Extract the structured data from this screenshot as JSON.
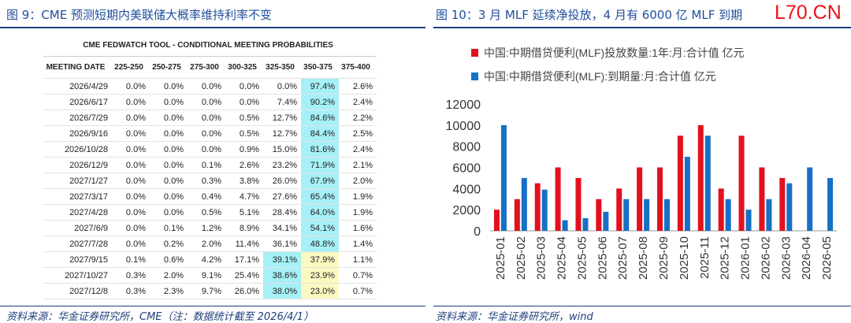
{
  "left": {
    "title": "图 9：CME 预测短期内美联储大概率维持利率不变",
    "source": "资料来源：华金证券研究所，CME（注：数据统计截至 2026/4/1）",
    "table": {
      "header": "CME FEDWATCH TOOL - CONDITIONAL MEETING PROBABILITIES",
      "columns": [
        "MEETING DATE",
        "225-250",
        "250-275",
        "275-300",
        "300-325",
        "325-350",
        "350-375",
        "375-400"
      ],
      "rows": [
        [
          "2026/4/29",
          "0.0%",
          "0.0%",
          "0.0%",
          "0.0%",
          "0.0%",
          "97.4%",
          "2.6%"
        ],
        [
          "2026/6/17",
          "0.0%",
          "0.0%",
          "0.0%",
          "0.0%",
          "7.4%",
          "90.2%",
          "2.4%"
        ],
        [
          "2026/7/29",
          "0.0%",
          "0.0%",
          "0.0%",
          "0.5%",
          "12.7%",
          "84.6%",
          "2.2%"
        ],
        [
          "2026/9/16",
          "0.0%",
          "0.0%",
          "0.0%",
          "0.5%",
          "12.7%",
          "84.4%",
          "2.5%"
        ],
        [
          "2026/10/28",
          "0.0%",
          "0.0%",
          "0.0%",
          "0.9%",
          "15.0%",
          "81.6%",
          "2.4%"
        ],
        [
          "2026/12/9",
          "0.0%",
          "0.0%",
          "0.1%",
          "2.6%",
          "23.2%",
          "71.9%",
          "2.1%"
        ],
        [
          "2027/1/27",
          "0.0%",
          "0.0%",
          "0.3%",
          "3.8%",
          "26.0%",
          "67.9%",
          "2.0%"
        ],
        [
          "2027/3/17",
          "0.0%",
          "0.0%",
          "0.4%",
          "4.7%",
          "27.6%",
          "65.4%",
          "1.9%"
        ],
        [
          "2027/4/28",
          "0.0%",
          "0.0%",
          "0.5%",
          "5.1%",
          "28.4%",
          "64.0%",
          "1.9%"
        ],
        [
          "2027/6/9",
          "0.0%",
          "0.1%",
          "1.2%",
          "8.9%",
          "34.1%",
          "54.1%",
          "1.6%"
        ],
        [
          "2027/7/28",
          "0.0%",
          "0.2%",
          "2.0%",
          "11.4%",
          "36.1%",
          "48.8%",
          "1.4%"
        ],
        [
          "2027/9/15",
          "0.1%",
          "0.6%",
          "4.2%",
          "17.1%",
          "39.1%",
          "37.9%",
          "1.1%"
        ],
        [
          "2027/10/27",
          "0.3%",
          "2.0%",
          "9.1%",
          "25.4%",
          "38.6%",
          "23.9%",
          "0.7%"
        ],
        [
          "2027/12/8",
          "0.3%",
          "2.3%",
          "9.7%",
          "26.0%",
          "38.0%",
          "23.0%",
          "0.7%"
        ]
      ]
    }
  },
  "chart_data": {
    "type": "bar",
    "title": "图 10：3 月 MLF 延续净投放，4 月有 6000 亿 MLF 到期",
    "source": "资料来源：华金证券研究所，wind",
    "categories": [
      "2025-01",
      "2025-02",
      "2025-03",
      "2025-04",
      "2025-05",
      "2025-06",
      "2025-07",
      "2025-08",
      "2025-09",
      "2025-10",
      "2025-11",
      "2025-12",
      "2026-01",
      "2026-02",
      "2026-03",
      "2026-04",
      "2026-05"
    ],
    "series": [
      {
        "name": "中国:中期借贷便利(MLF)投放数量:1年:月:合计值 亿元",
        "color": "#e3101d",
        "values": [
          2000,
          3000,
          4500,
          6000,
          5000,
          3000,
          4000,
          6000,
          6000,
          9000,
          10000,
          4000,
          9000,
          6000,
          5000,
          null,
          null
        ]
      },
      {
        "name": "中国:中期借贷便利(MLF):到期量:月:合计值 亿元",
        "color": "#1670c6",
        "values": [
          10000,
          5000,
          3900,
          1000,
          1200,
          1800,
          3000,
          3000,
          3000,
          7000,
          9000,
          3000,
          2000,
          3000,
          4500,
          6000,
          5000
        ]
      }
    ],
    "ylim": [
      0,
      12000
    ],
    "yticks": [
      0,
      2000,
      4000,
      6000,
      8000,
      10000,
      12000
    ],
    "legend": "top"
  },
  "watermark": "L70.CN"
}
